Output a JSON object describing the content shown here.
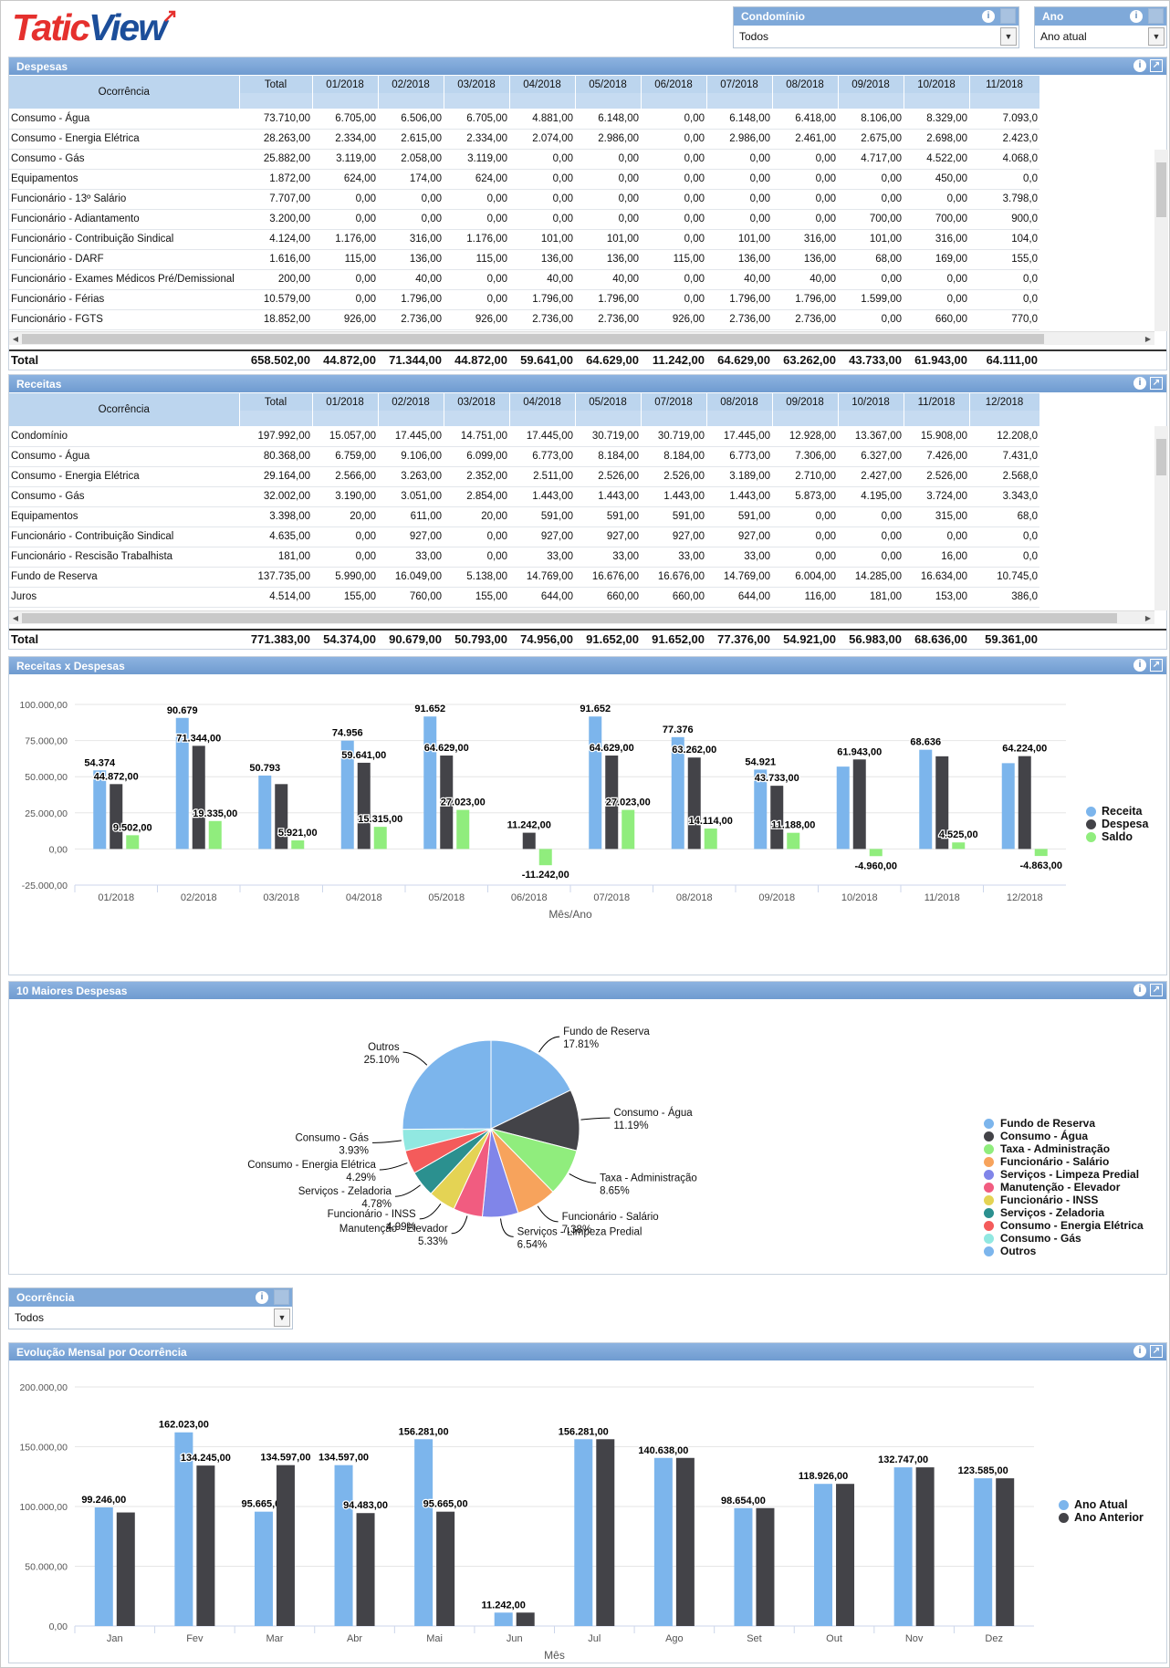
{
  "brand": {
    "logo_a": "Tatic",
    "logo_b": "View"
  },
  "filters": {
    "condominio": {
      "label": "Condomínio",
      "value": "Todos"
    },
    "ano": {
      "label": "Ano",
      "value": "Ano atual"
    },
    "ocorrencia": {
      "label": "Ocorrência",
      "value": "Todos"
    }
  },
  "colors": {
    "receita": "#7cb5ec",
    "despesa": "#434348",
    "saldo": "#90ed7d",
    "header": "#7fa9d9"
  },
  "despesas": {
    "title": "Despesas",
    "col_label": "Ocorrência",
    "columns": [
      "Total",
      "01/2018",
      "02/2018",
      "03/2018",
      "04/2018",
      "05/2018",
      "06/2018",
      "07/2018",
      "08/2018",
      "09/2018",
      "10/2018",
      "11/2018"
    ],
    "rows": [
      [
        "Consumo - Água",
        "73.710,00",
        "6.705,00",
        "6.506,00",
        "6.705,00",
        "4.881,00",
        "6.148,00",
        "0,00",
        "6.148,00",
        "6.418,00",
        "8.106,00",
        "8.329,00",
        "7.093,0"
      ],
      [
        "Consumo - Energia Elétrica",
        "28.263,00",
        "2.334,00",
        "2.615,00",
        "2.334,00",
        "2.074,00",
        "2.986,00",
        "0,00",
        "2.986,00",
        "2.461,00",
        "2.675,00",
        "2.698,00",
        "2.423,0"
      ],
      [
        "Consumo - Gás",
        "25.882,00",
        "3.119,00",
        "2.058,00",
        "3.119,00",
        "0,00",
        "0,00",
        "0,00",
        "0,00",
        "0,00",
        "4.717,00",
        "4.522,00",
        "4.068,0"
      ],
      [
        "Equipamentos",
        "1.872,00",
        "624,00",
        "174,00",
        "624,00",
        "0,00",
        "0,00",
        "0,00",
        "0,00",
        "0,00",
        "0,00",
        "450,00",
        "0,0"
      ],
      [
        "Funcionário - 13º Salário",
        "7.707,00",
        "0,00",
        "0,00",
        "0,00",
        "0,00",
        "0,00",
        "0,00",
        "0,00",
        "0,00",
        "0,00",
        "0,00",
        "3.798,0"
      ],
      [
        "Funcionário - Adiantamento",
        "3.200,00",
        "0,00",
        "0,00",
        "0,00",
        "0,00",
        "0,00",
        "0,00",
        "0,00",
        "0,00",
        "700,00",
        "700,00",
        "900,0"
      ],
      [
        "Funcionário - Contribuição Sindical",
        "4.124,00",
        "1.176,00",
        "316,00",
        "1.176,00",
        "101,00",
        "101,00",
        "0,00",
        "101,00",
        "316,00",
        "101,00",
        "316,00",
        "104,0"
      ],
      [
        "Funcionário - DARF",
        "1.616,00",
        "115,00",
        "136,00",
        "115,00",
        "136,00",
        "136,00",
        "115,00",
        "136,00",
        "136,00",
        "68,00",
        "169,00",
        "155,0"
      ],
      [
        "Funcionário - Exames Médicos Pré/Demissional",
        "200,00",
        "0,00",
        "40,00",
        "0,00",
        "40,00",
        "40,00",
        "0,00",
        "40,00",
        "40,00",
        "0,00",
        "0,00",
        "0,0"
      ],
      [
        "Funcionário - Férias",
        "10.579,00",
        "0,00",
        "1.796,00",
        "0,00",
        "1.796,00",
        "1.796,00",
        "0,00",
        "1.796,00",
        "1.796,00",
        "1.599,00",
        "0,00",
        "0,0"
      ],
      [
        "Funcionário - FGTS",
        "18.852,00",
        "926,00",
        "2.736,00",
        "926,00",
        "2.736,00",
        "2.736,00",
        "926,00",
        "2.736,00",
        "2.736,00",
        "0,00",
        "660,00",
        "770,0"
      ]
    ],
    "total": [
      "Total",
      "658.502,00",
      "44.872,00",
      "71.344,00",
      "44.872,00",
      "59.641,00",
      "64.629,00",
      "11.242,00",
      "64.629,00",
      "63.262,00",
      "43.733,00",
      "61.943,00",
      "64.111,00"
    ]
  },
  "receitas": {
    "title": "Receitas",
    "col_label": "Ocorrência",
    "columns": [
      "Total",
      "01/2018",
      "02/2018",
      "03/2018",
      "04/2018",
      "05/2018",
      "07/2018",
      "08/2018",
      "09/2018",
      "10/2018",
      "11/2018",
      "12/2018"
    ],
    "rows": [
      [
        "Condomínio",
        "197.992,00",
        "15.057,00",
        "17.445,00",
        "14.751,00",
        "17.445,00",
        "30.719,00",
        "30.719,00",
        "17.445,00",
        "12.928,00",
        "13.367,00",
        "15.908,00",
        "12.208,0"
      ],
      [
        "Consumo - Água",
        "80.368,00",
        "6.759,00",
        "9.106,00",
        "6.099,00",
        "6.773,00",
        "8.184,00",
        "8.184,00",
        "6.773,00",
        "7.306,00",
        "6.327,00",
        "7.426,00",
        "7.431,0"
      ],
      [
        "Consumo - Energia Elétrica",
        "29.164,00",
        "2.566,00",
        "3.263,00",
        "2.352,00",
        "2.511,00",
        "2.526,00",
        "2.526,00",
        "3.189,00",
        "2.710,00",
        "2.427,00",
        "2.526,00",
        "2.568,0"
      ],
      [
        "Consumo - Gás",
        "32.002,00",
        "3.190,00",
        "3.051,00",
        "2.854,00",
        "1.443,00",
        "1.443,00",
        "1.443,00",
        "1.443,00",
        "5.873,00",
        "4.195,00",
        "3.724,00",
        "3.343,0"
      ],
      [
        "Equipamentos",
        "3.398,00",
        "20,00",
        "611,00",
        "20,00",
        "591,00",
        "591,00",
        "591,00",
        "591,00",
        "0,00",
        "0,00",
        "315,00",
        "68,0"
      ],
      [
        "Funcionário - Contribuição Sindical",
        "4.635,00",
        "0,00",
        "927,00",
        "0,00",
        "927,00",
        "927,00",
        "927,00",
        "927,00",
        "0,00",
        "0,00",
        "0,00",
        "0,0"
      ],
      [
        "Funcionário - Rescisão Trabalhista",
        "181,00",
        "0,00",
        "33,00",
        "0,00",
        "33,00",
        "33,00",
        "33,00",
        "33,00",
        "0,00",
        "0,00",
        "16,00",
        "0,0"
      ],
      [
        "Fundo de Reserva",
        "137.735,00",
        "5.990,00",
        "16.049,00",
        "5.138,00",
        "14.769,00",
        "16.676,00",
        "16.676,00",
        "14.769,00",
        "6.004,00",
        "14.285,00",
        "16.634,00",
        "10.745,0"
      ],
      [
        "Juros",
        "4.514,00",
        "155,00",
        "760,00",
        "155,00",
        "644,00",
        "660,00",
        "660,00",
        "644,00",
        "116,00",
        "181,00",
        "153,00",
        "386,0"
      ]
    ],
    "total": [
      "Total",
      "771.383,00",
      "54.374,00",
      "90.679,00",
      "50.793,00",
      "74.956,00",
      "91.652,00",
      "91.652,00",
      "77.376,00",
      "54.921,00",
      "56.983,00",
      "68.636,00",
      "59.361,00"
    ]
  },
  "chart_data": [
    {
      "type": "bar",
      "title": "Receitas x Despesas",
      "xlabel": "Mês/Ano",
      "ylabel": "",
      "ylim": [
        -25000,
        100000
      ],
      "yticks": [
        "100.000,00",
        "75.000,00",
        "50.000,00",
        "25.000,00",
        "0,00",
        "-25.000,00"
      ],
      "categories": [
        "01/2018",
        "02/2018",
        "03/2018",
        "04/2018",
        "05/2018",
        "06/2018",
        "07/2018",
        "08/2018",
        "09/2018",
        "10/2018",
        "11/2018",
        "12/2018"
      ],
      "series": [
        {
          "name": "Receita",
          "values": [
            54374,
            90679,
            50793,
            74956,
            91652,
            0,
            91652,
            77376,
            54921,
            56983,
            68636,
            59361
          ],
          "labels": [
            "54.374",
            "90.679",
            "50.793",
            "74.956",
            "91.652",
            "",
            "91.652",
            "77.376",
            "54.921",
            "",
            "68.636",
            ""
          ]
        },
        {
          "name": "Despesa",
          "values": [
            44872,
            71344,
            44872,
            59641,
            64629,
            11242,
            64629,
            63262,
            43733,
            61943,
            64111,
            64224
          ],
          "labels": [
            "44.872,00",
            "71.344,00",
            "",
            "59.641,00",
            "64.629,00",
            "11.242,00",
            "64.629,00",
            "63.262,00",
            "43.733,00",
            "61.943,00",
            "",
            "64.224,00"
          ]
        },
        {
          "name": "Saldo",
          "values": [
            9502,
            19335,
            5921,
            15315,
            27023,
            -11242,
            27023,
            14114,
            11188,
            -4960,
            4525,
            -4863
          ],
          "labels": [
            "9.502,00",
            "19.335,00",
            "5.921,00",
            "15.315,00",
            "27.023,00",
            "-11.242,00",
            "27.023,00",
            "14.114,00",
            "11.188,00",
            "-4.960,00",
            "4.525,00",
            "-4.863,00"
          ]
        }
      ]
    },
    {
      "type": "pie",
      "title": "10 Maiores Despesas",
      "slices": [
        {
          "name": "Fundo de Reserva",
          "value": 17.81,
          "label": "17.81%",
          "color": "#7cb5ec"
        },
        {
          "name": "Consumo - Água",
          "value": 11.19,
          "label": "11.19%",
          "color": "#434348"
        },
        {
          "name": "Taxa - Administração",
          "value": 8.65,
          "label": "8.65%",
          "color": "#90ed7d"
        },
        {
          "name": "Funcionário - Salário",
          "value": 7.38,
          "label": "7.38%",
          "color": "#f7a35c"
        },
        {
          "name": "Serviços - Limpeza Predial",
          "value": 6.54,
          "label": "6.54%",
          "color": "#8085e9"
        },
        {
          "name": "Manutenção - Elevador",
          "value": 5.33,
          "label": "5.33%",
          "color": "#f15c80"
        },
        {
          "name": "Funcionário - INSS",
          "value": 4.99,
          "label": "4.99%",
          "color": "#e4d354"
        },
        {
          "name": "Serviços - Zeladoria",
          "value": 4.78,
          "label": "4.78%",
          "color": "#2b908f"
        },
        {
          "name": "Consumo - Energia Elétrica",
          "value": 4.29,
          "label": "4.29%",
          "color": "#f45b5b"
        },
        {
          "name": "Consumo - Gás",
          "value": 3.93,
          "label": "3.93%",
          "color": "#91e8e1"
        },
        {
          "name": "Outros",
          "value": 25.1,
          "label": "25.10%",
          "color": "#7cb5ec"
        }
      ]
    },
    {
      "type": "bar",
      "title": "Evolução Mensal por Ocorrência",
      "xlabel": "Mês",
      "ylabel": "",
      "ylim": [
        0,
        200000
      ],
      "yticks": [
        "200.000,00",
        "150.000,00",
        "100.000,00",
        "50.000,00",
        "0,00"
      ],
      "categories": [
        "Jan",
        "Fev",
        "Mar",
        "Abr",
        "Mai",
        "Jun",
        "Jul",
        "Ago",
        "Set",
        "Out",
        "Nov",
        "Dez"
      ],
      "series": [
        {
          "name": "Ano Atual",
          "values": [
            99246,
            162023,
            95665,
            134597,
            156281,
            11242,
            156281,
            140638,
            98654,
            118926,
            132747,
            123585
          ],
          "labels": [
            "99.246,00",
            "162.023,00",
            "95.665,00",
            "134.597,00",
            "156.281,00",
            "11.242,00",
            "156.281,00",
            "140.638,00",
            "98.654,00",
            "118.926,00",
            "132.747,00",
            "123.585,00"
          ]
        },
        {
          "name": "Ano Anterior",
          "values": [
            95000,
            134245,
            134597,
            94483,
            95665,
            11242,
            156281,
            140638,
            98654,
            118926,
            132747,
            123585
          ],
          "labels": [
            "",
            "134.245,00",
            "134.597,00",
            "94.483,00",
            "95.665,00",
            "",
            "",
            "",
            "",
            "",
            "",
            ""
          ]
        }
      ]
    }
  ]
}
